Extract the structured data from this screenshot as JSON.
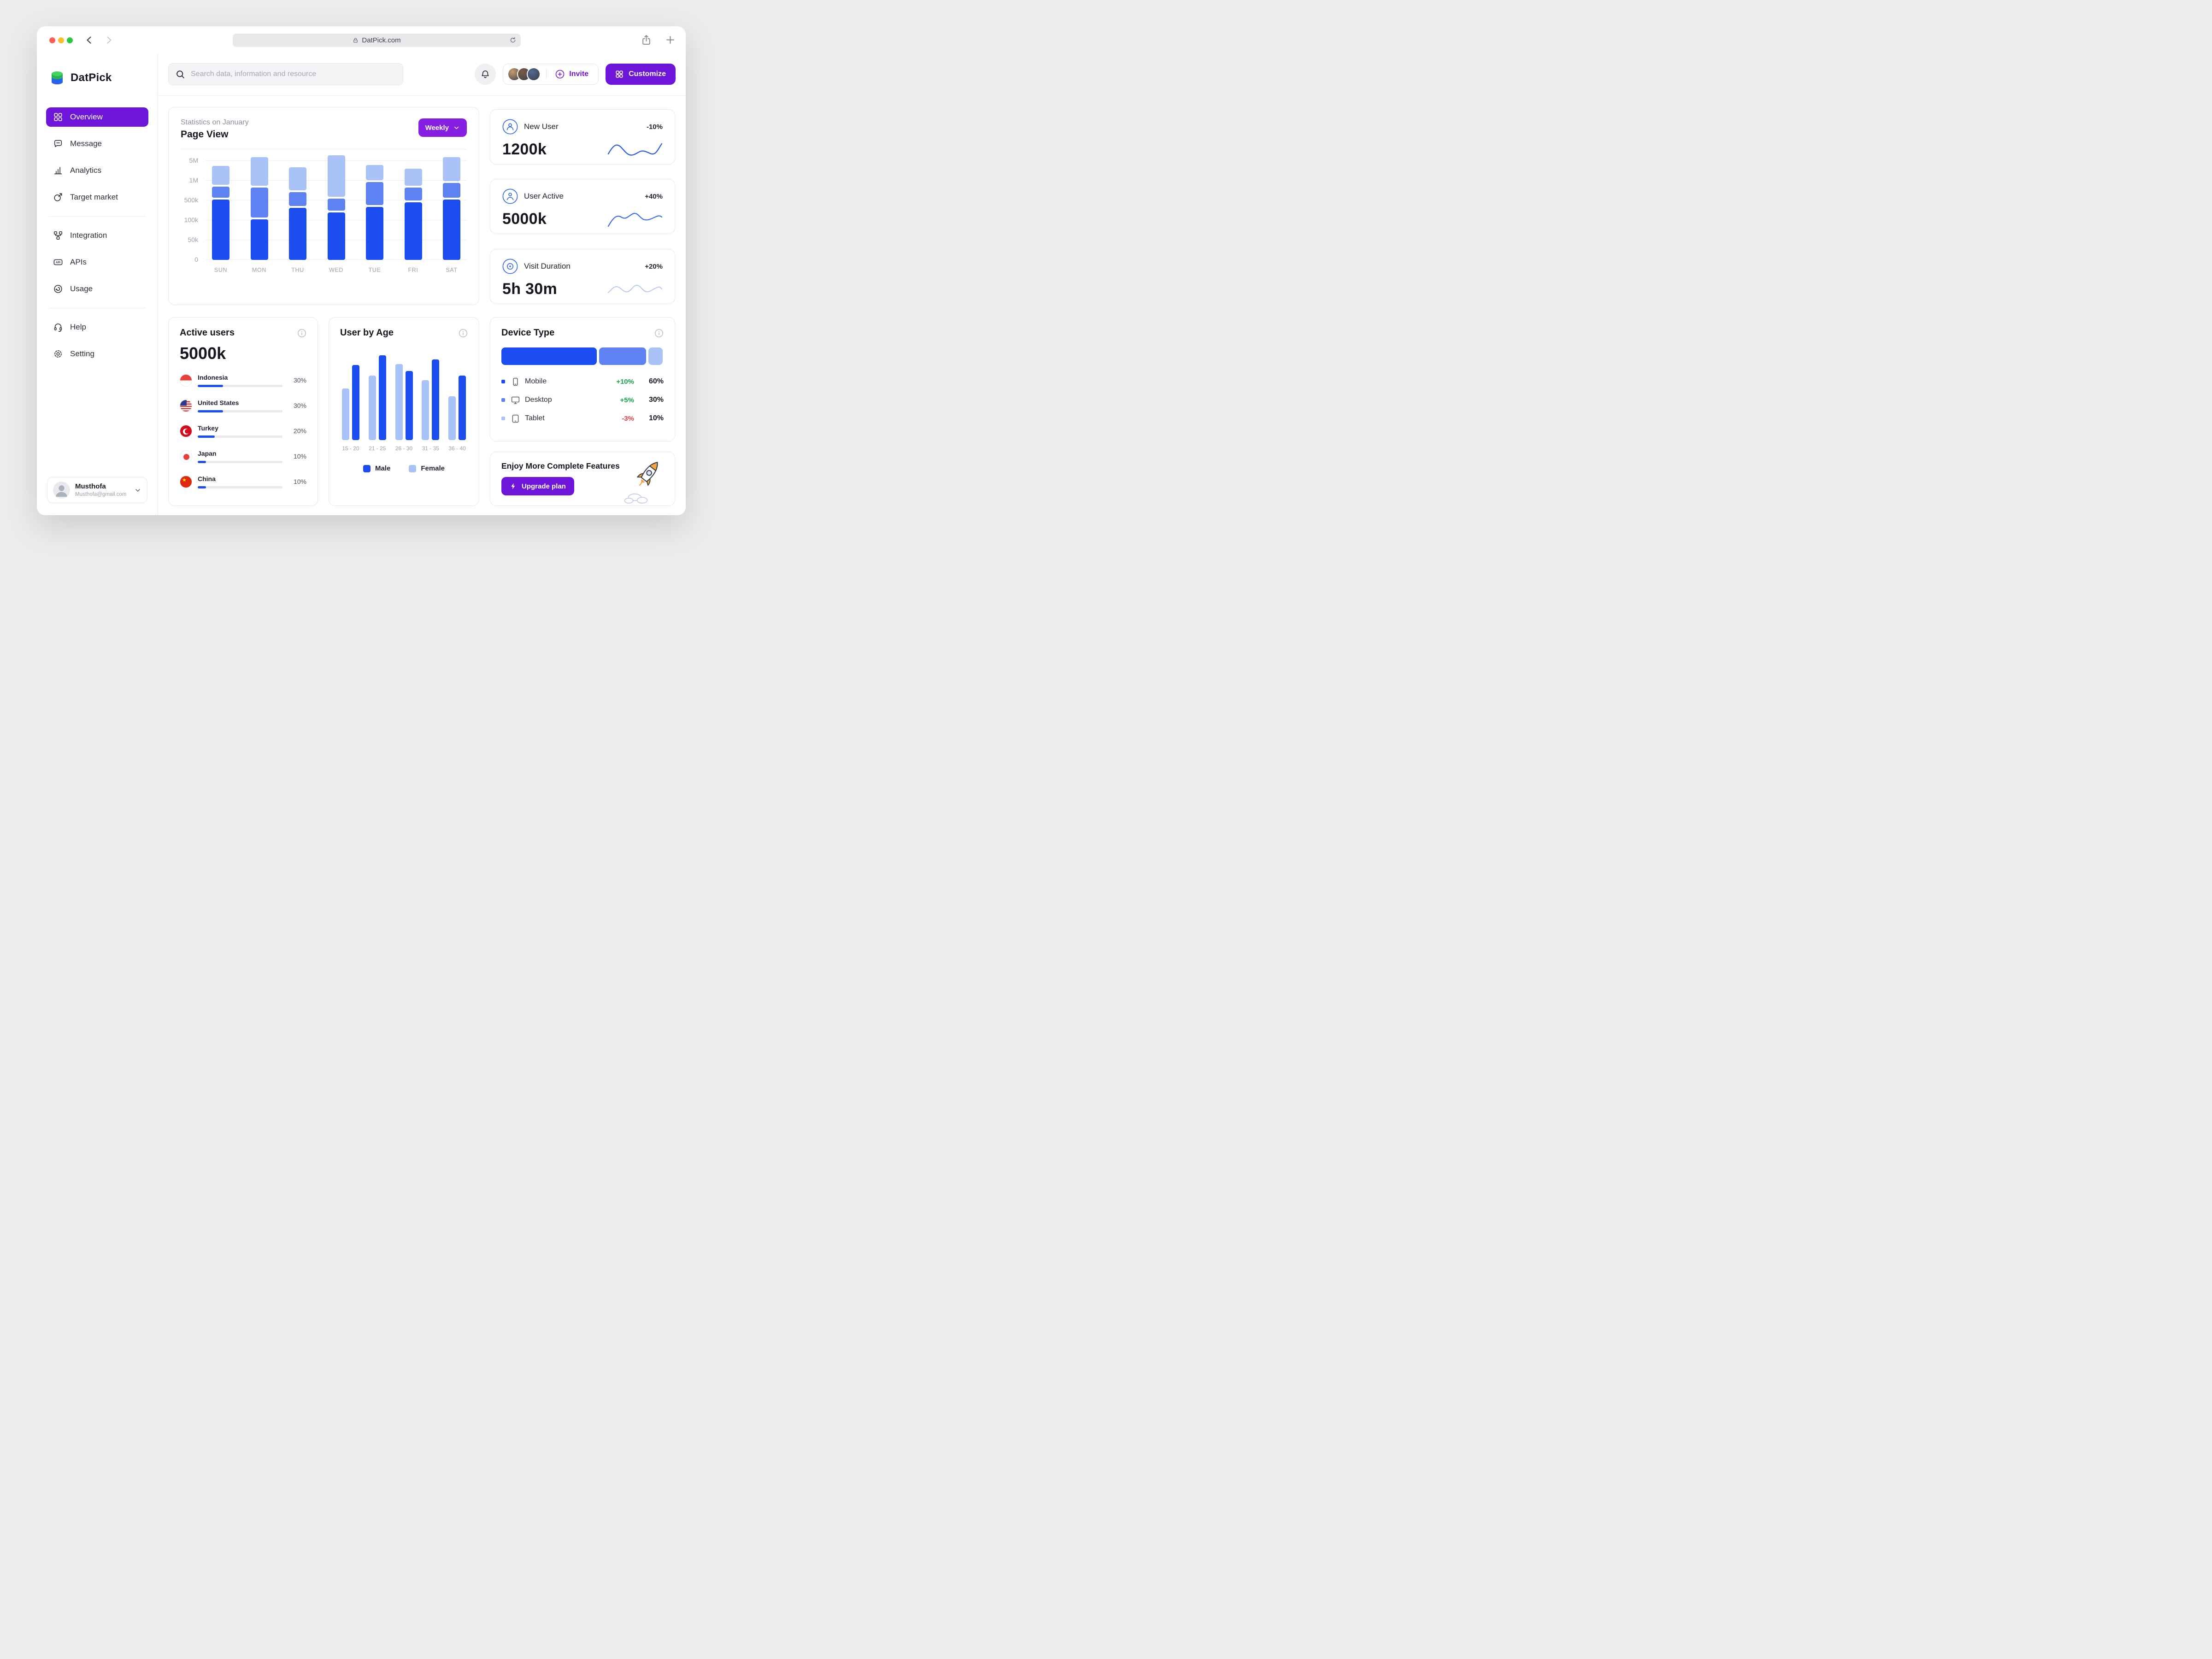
{
  "browser": {
    "url": "DatPick.com"
  },
  "sidebar": {
    "logo_text": "DatPick",
    "sections": [
      [
        {
          "icon": "overview",
          "label": "Overview",
          "active": true
        },
        {
          "icon": "message",
          "label": "Message"
        },
        {
          "icon": "analytics",
          "label": "Analytics"
        },
        {
          "icon": "target",
          "label": "Target market"
        }
      ],
      [
        {
          "icon": "integration",
          "label": "Integration"
        },
        {
          "icon": "api",
          "label": "APIs"
        },
        {
          "icon": "usage",
          "label": "Usage"
        }
      ],
      [
        {
          "icon": "help",
          "label": "Help"
        },
        {
          "icon": "setting",
          "label": "Setting"
        }
      ]
    ],
    "profile": {
      "name": "Musthofa",
      "email": "Musthofa@gmail.com"
    }
  },
  "topbar": {
    "search_placeholder": "Search data, information and resource",
    "invite_label": "Invite",
    "customize_label": "Customize",
    "avatars": [
      "#c99a6e",
      "#7a5a48",
      "#51688f"
    ]
  },
  "page_view": {
    "subtitle": "Statistics on January",
    "title": "Page View",
    "period": "Weekly"
  },
  "stats": [
    {
      "label": "New User",
      "delta": "-10%",
      "value": "1200k"
    },
    {
      "label": "User Active",
      "delta": "+40%",
      "value": "5000k"
    },
    {
      "label": "Visit Duration",
      "delta": "+20%",
      "value": "5h 30m"
    }
  ],
  "active_users": {
    "title": "Active users",
    "value": "5000k",
    "countries": [
      {
        "code": "id",
        "name": "Indonesia",
        "pct": "30%",
        "value": 30
      },
      {
        "code": "us",
        "name": "United States",
        "pct": "30%",
        "value": 30
      },
      {
        "code": "tr",
        "name": "Turkey",
        "pct": "20%",
        "value": 20
      },
      {
        "code": "jp",
        "name": "Japan",
        "pct": "10%",
        "value": 10
      },
      {
        "code": "cn",
        "name": "China",
        "pct": "10%",
        "value": 10
      }
    ]
  },
  "user_by_age": {
    "title": "User by Age"
  },
  "device_type": {
    "title": "Device Type",
    "rows": [
      {
        "icon": "mobile",
        "label": "Mobile",
        "delta": "+10%",
        "delta_color": "#16a34a",
        "pct": "60%",
        "bullet": "#1b4df0"
      },
      {
        "icon": "desktop",
        "label": "Desktop",
        "delta": "+5%",
        "delta_color": "#16a34a",
        "pct": "30%",
        "bullet": "#5f82f2"
      },
      {
        "icon": "tablet",
        "label": "Tablet",
        "delta": "-3%",
        "delta_color": "#e8403d",
        "pct": "10%",
        "bullet": "#a9c3f8"
      }
    ]
  },
  "upgrade": {
    "title": "Enjoy More Complete Features",
    "button_label": "Upgrade plan"
  },
  "colors": {
    "accent": "#6d16d9",
    "weekly": "#871fe3",
    "blue": "#1b4df0",
    "blue_mid": "#5f82f2",
    "blue_light": "#a9c3f8",
    "green": "#16a34a",
    "red": "#e8403d"
  },
  "chart_data": [
    {
      "id": "page-view",
      "type": "bar",
      "stacked": true,
      "title": "Page View",
      "subtitle": "Statistics on January",
      "period": "Weekly",
      "categories": [
        "SUN",
        "MON",
        "THU",
        "WED",
        "TUE",
        "FRI",
        "SAT"
      ],
      "y_ticks": [
        "5M",
        "1M",
        "500k",
        "100k",
        "50k",
        "0"
      ],
      "grid": true,
      "series": [
        {
          "name": "primary",
          "color": "#1b4df0",
          "heights": [
            131,
            88,
            113,
            103,
            115,
            125,
            131
          ]
        },
        {
          "name": "secondary",
          "color": "#5f82f2",
          "heights": [
            24,
            65,
            30,
            26,
            50,
            28,
            32
          ]
        },
        {
          "name": "tertiary",
          "color": "#a9c3f8",
          "heights": [
            41,
            62,
            50,
            90,
            33,
            37,
            52
          ]
        }
      ]
    },
    {
      "id": "user-by-age",
      "type": "bar",
      "grouped": true,
      "title": "User by Age",
      "categories": [
        "15 - 20",
        "21 - 25",
        "26 - 30",
        "31 - 35",
        "36 - 40"
      ],
      "series": [
        {
          "name": "Female",
          "color": "#a9c3f8",
          "heights": [
            112,
            140,
            165,
            130,
            95
          ]
        },
        {
          "name": "Male",
          "color": "#1b4df0",
          "heights": [
            163,
            184,
            150,
            175,
            140
          ]
        }
      ],
      "legend": [
        {
          "label": "Male",
          "color": "#1b4df0"
        },
        {
          "label": "Female",
          "color": "#a9c3f8"
        }
      ],
      "legend_position": "bottom"
    },
    {
      "id": "device-type",
      "type": "bar",
      "stacked": true,
      "orientation": "horizontal",
      "title": "Device Type",
      "categories": [
        "Mobile",
        "Desktop",
        "Tablet"
      ],
      "values": [
        60,
        30,
        10
      ],
      "deltas": [
        "+10%",
        "+5%",
        "-3%"
      ],
      "colors": [
        "#1b4df0",
        "#5f82f2",
        "#a9c3f8"
      ]
    }
  ]
}
